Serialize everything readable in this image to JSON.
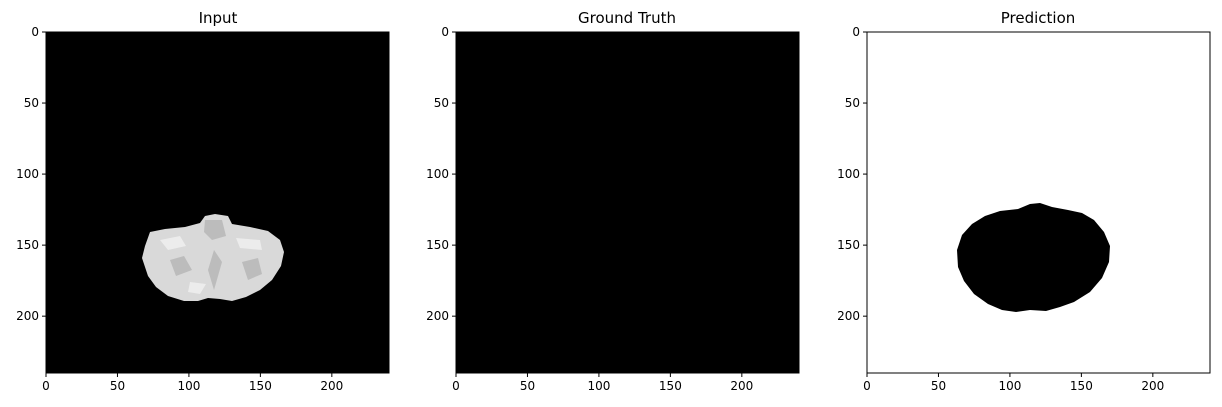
{
  "chart_data": [
    {
      "type": "image",
      "title": "Input",
      "xlim": [
        0,
        240
      ],
      "ylim": [
        240,
        0
      ],
      "xticks": [
        0,
        50,
        100,
        150,
        200
      ],
      "yticks": [
        0,
        50,
        100,
        150,
        200
      ],
      "background": "#000000",
      "content": "grayscale brain slice (bright region)",
      "region_fill": "#d9d9d9"
    },
    {
      "type": "image",
      "title": "Ground Truth",
      "xlim": [
        0,
        240
      ],
      "ylim": [
        240,
        0
      ],
      "xticks": [
        0,
        50,
        100,
        150,
        200
      ],
      "yticks": [
        0,
        50,
        100,
        150,
        200
      ],
      "background": "#000000",
      "content": "empty (all black)"
    },
    {
      "type": "image",
      "title": "Prediction",
      "xlim": [
        0,
        240
      ],
      "ylim": [
        240,
        0
      ],
      "xticks": [
        0,
        50,
        100,
        150,
        200
      ],
      "yticks": [
        0,
        50,
        100,
        150,
        200
      ],
      "background": "#ffffff",
      "content": "black blob region",
      "region_fill": "#000000"
    }
  ]
}
